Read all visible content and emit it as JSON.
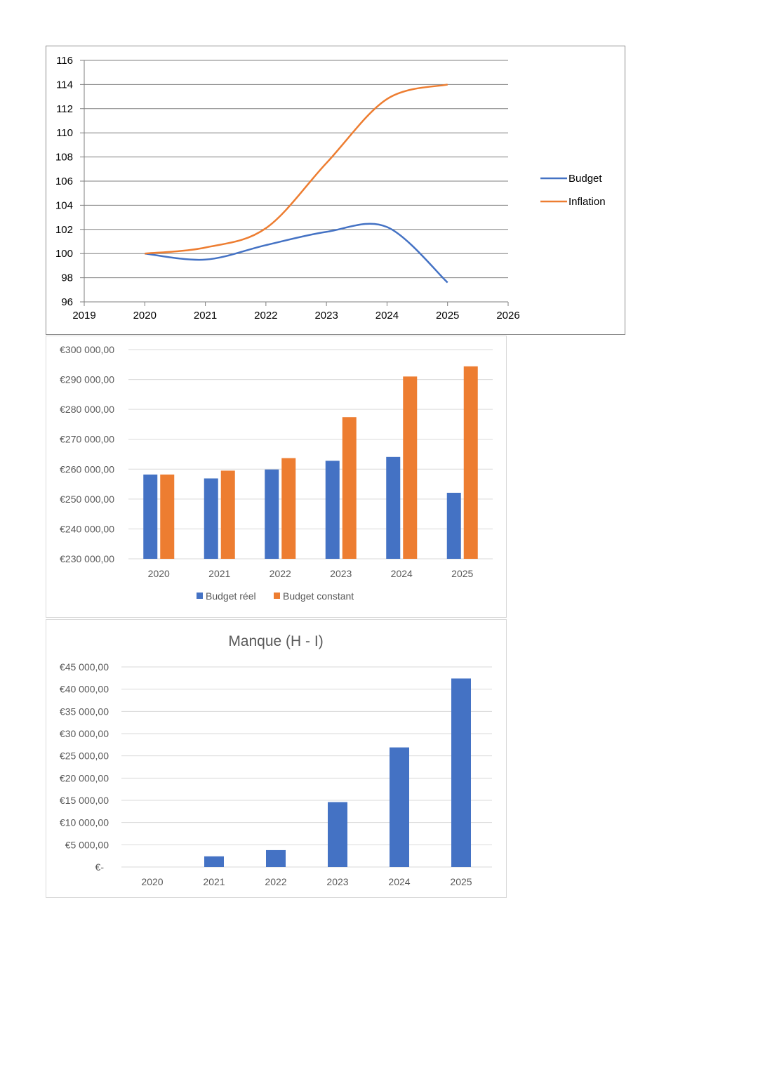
{
  "chart_data": [
    {
      "type": "line",
      "title": "",
      "xlabel": "",
      "ylabel": "",
      "x": [
        2020,
        2021,
        2022,
        2023,
        2024,
        2025
      ],
      "xlim": [
        2019,
        2026
      ],
      "xticks": [
        "2019",
        "2020",
        "2021",
        "2022",
        "2023",
        "2024",
        "2025",
        "2026"
      ],
      "ylim": [
        96,
        116
      ],
      "yticks": [
        "96",
        "98",
        "100",
        "102",
        "104",
        "106",
        "108",
        "110",
        "112",
        "114",
        "116"
      ],
      "grid": true,
      "smooth": true,
      "legend": "right",
      "series": [
        {
          "name": "Budget",
          "color": "#4472C4",
          "values": [
            100,
            99.5,
            100.7,
            101.8,
            102.2,
            97.6
          ]
        },
        {
          "name": "Inflation",
          "color": "#ED7D31",
          "values": [
            100,
            100.5,
            102.1,
            107.5,
            112.8,
            114.0
          ]
        }
      ]
    },
    {
      "type": "bar",
      "title": "",
      "xlabel": "",
      "ylabel": "",
      "categories": [
        "2020",
        "2021",
        "2022",
        "2023",
        "2024",
        "2025"
      ],
      "ylim": [
        230000,
        300000
      ],
      "yticks": [
        "€230 000,00",
        "€240 000,00",
        "€250 000,00",
        "€260 000,00",
        "€270 000,00",
        "€280 000,00",
        "€290 000,00",
        "€300 000,00"
      ],
      "grid": true,
      "legend": "bottom",
      "series": [
        {
          "name": "Budget réel",
          "color": "#4472C4",
          "values": [
            258200,
            256900,
            259900,
            262800,
            264100,
            252100
          ]
        },
        {
          "name": "Budget constant",
          "color": "#ED7D31",
          "values": [
            258200,
            259500,
            263700,
            277400,
            291000,
            294400
          ]
        }
      ]
    },
    {
      "type": "bar",
      "title": "Manque (H - I)",
      "xlabel": "",
      "ylabel": "",
      "categories": [
        "2020",
        "2021",
        "2022",
        "2023",
        "2024",
        "2025"
      ],
      "ylim": [
        0,
        45000
      ],
      "yticks": [
        "€-",
        "€5 000,00",
        "€10 000,00",
        "€15 000,00",
        "€20 000,00",
        "€25 000,00",
        "€30 000,00",
        "€35 000,00",
        "€40 000,00",
        "€45 000,00"
      ],
      "grid": true,
      "series": [
        {
          "color": "#4472C4",
          "values": [
            0,
            2400,
            3800,
            14600,
            26900,
            42400
          ]
        }
      ]
    }
  ]
}
